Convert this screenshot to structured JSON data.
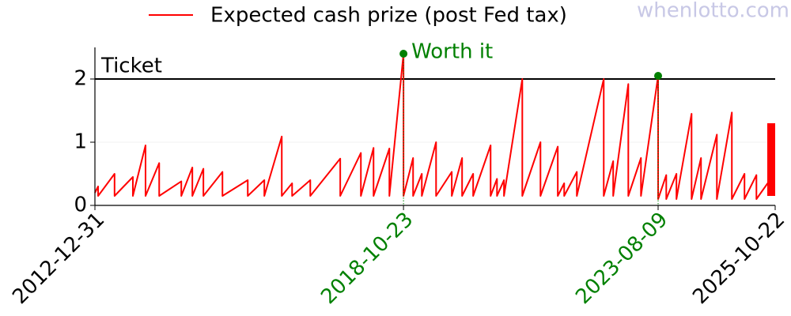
{
  "chart_data": {
    "type": "line",
    "watermark": "whenlotto.com",
    "xlim": [
      "2012-12-31",
      "2025-10-22"
    ],
    "xticks": [
      "2012-12-31",
      "2018-10-23",
      "2023-08-09",
      "2025-10-22"
    ],
    "ylim": [
      0,
      2.5
    ],
    "yticks": [
      0,
      1,
      2
    ],
    "grid": true,
    "legend": "top",
    "series": [
      {
        "name": "Expected cash prize (post Fed tax)",
        "color": "#ff0000",
        "x": [
          "2012-12-31",
          "2013-01-22",
          "2013-01-22",
          "2013-05-15",
          "2013-05-15",
          "2013-09-18",
          "2013-09-18",
          "2013-12-14",
          "2013-12-14",
          "2014-03-18",
          "2014-03-18",
          "2014-08-17",
          "2014-08-17",
          "2014-11-01",
          "2014-11-01",
          "2015-01-16",
          "2015-01-16",
          "2015-05-27",
          "2015-05-27",
          "2015-11-17",
          "2015-11-17",
          "2016-03-10",
          "2016-03-10",
          "2016-07-08",
          "2016-07-08",
          "2016-09-17",
          "2016-09-17",
          "2017-01-20",
          "2017-01-20",
          "2017-08-14",
          "2017-08-14",
          "2018-01-03",
          "2018-01-03",
          "2018-03-31",
          "2018-03-31",
          "2018-07-18",
          "2018-07-18",
          "2018-10-23",
          "2018-10-23",
          "2018-12-28",
          "2018-12-28",
          "2019-02-26",
          "2019-02-26",
          "2019-06-04",
          "2019-06-04",
          "2019-09-20",
          "2019-09-20",
          "2019-11-30",
          "2019-11-30",
          "2020-02-14",
          "2020-02-14",
          "2020-06-13",
          "2020-06-13",
          "2020-07-27",
          "2020-07-27",
          "2020-09-13",
          "2020-09-13",
          "2021-01-17",
          "2021-01-17",
          "2021-05-22",
          "2021-05-22",
          "2021-09-18",
          "2021-09-18",
          "2021-11-01",
          "2021-11-01",
          "2022-01-27",
          "2022-01-27",
          "2022-07-31",
          "2022-07-31",
          "2022-10-04",
          "2022-10-04",
          "2023-01-16",
          "2023-01-16",
          "2023-04-13",
          "2023-04-13",
          "2023-08-09",
          "2023-08-09",
          "2023-10-04",
          "2023-10-04",
          "2023-12-13",
          "2023-12-13",
          "2024-03-26",
          "2024-03-26",
          "2024-05-30",
          "2024-05-30",
          "2024-09-16",
          "2024-09-16",
          "2024-12-28",
          "2024-12-28",
          "2025-03-25",
          "2025-03-25",
          "2025-06-15",
          "2025-06-15",
          "2025-10-01",
          "2025-10-01"
        ],
        "values": [
          0.2,
          0.3,
          0.15,
          0.5,
          0.15,
          0.45,
          0.15,
          0.95,
          0.15,
          0.67,
          0.15,
          0.38,
          0.15,
          0.6,
          0.15,
          0.58,
          0.15,
          0.53,
          0.15,
          0.4,
          0.15,
          0.4,
          0.15,
          1.09,
          0.15,
          0.35,
          0.15,
          0.4,
          0.15,
          0.74,
          0.15,
          0.83,
          0.15,
          0.91,
          0.15,
          0.9,
          0.15,
          2.4,
          0.15,
          0.75,
          0.15,
          0.5,
          0.15,
          1.0,
          0.15,
          0.53,
          0.15,
          0.75,
          0.15,
          0.5,
          0.15,
          0.95,
          0.15,
          0.42,
          0.15,
          0.4,
          0.15,
          2.0,
          0.15,
          1.0,
          0.15,
          0.93,
          0.15,
          0.35,
          0.15,
          0.53,
          0.15,
          2.0,
          0.15,
          0.7,
          0.15,
          1.92,
          0.15,
          0.75,
          0.15,
          2.05,
          0.1,
          0.48,
          0.1,
          0.5,
          0.1,
          1.45,
          0.1,
          0.75,
          0.1,
          1.12,
          0.1,
          1.47,
          0.1,
          0.5,
          0.1,
          0.48,
          0.1,
          0.45,
          0.15
        ]
      }
    ],
    "current": {
      "x": "2025-10-22",
      "low": 0.15,
      "high": 1.3,
      "color": "#ff0000"
    },
    "threshold": {
      "value": 2,
      "label": "Ticket",
      "color": "#000000"
    },
    "highlight_color": "#008000",
    "highlights": [
      {
        "x": "2018-10-23",
        "y": 2.4,
        "label": "Worth it"
      },
      {
        "x": "2023-08-09",
        "y": 2.05
      }
    ]
  }
}
